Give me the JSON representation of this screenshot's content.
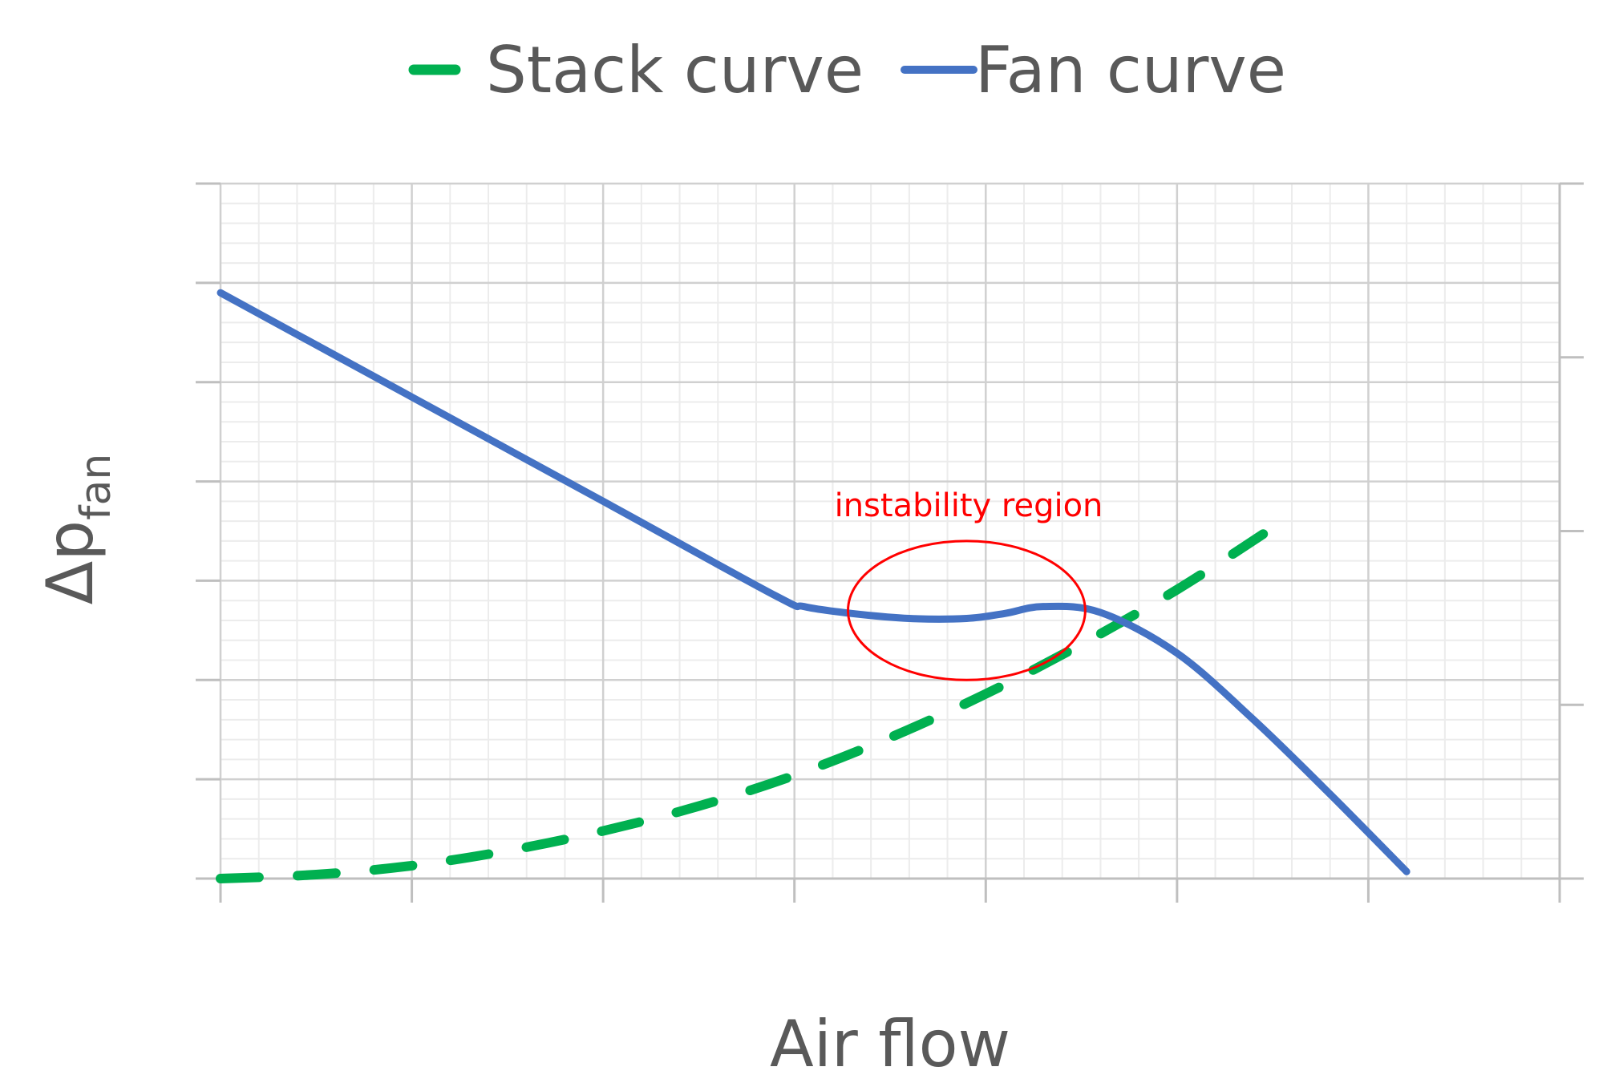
{
  "chart_data": {
    "type": "line",
    "title": "",
    "xlabel": "Air flow",
    "ylabel": "Δp",
    "ylabel_subscript": "fan",
    "xlim": [
      0,
      7
    ],
    "ylim": [
      0,
      7
    ],
    "y2lim": [
      0,
      4
    ],
    "grid": true,
    "minor_grid": true,
    "legend_position": "top",
    "series": [
      {
        "name": "Stack curve",
        "style": "dashed",
        "color": "#00b050",
        "x": [
          0,
          0.5,
          1,
          1.5,
          2,
          2.5,
          3,
          3.5,
          4,
          4.5,
          5,
          5.45
        ],
        "y": [
          0.0,
          0.04,
          0.13,
          0.28,
          0.48,
          0.73,
          1.04,
          1.42,
          1.86,
          2.36,
          2.91,
          3.47
        ]
      },
      {
        "name": "Fan curve",
        "style": "solid",
        "color": "#4472c4",
        "x": [
          0,
          1,
          2,
          2.9,
          3.05,
          3.3,
          3.6,
          3.9,
          4.1,
          4.3,
          4.6,
          5.0,
          5.4,
          5.8,
          6.2
        ],
        "y": [
          5.9,
          4.85,
          3.8,
          2.85,
          2.74,
          2.67,
          2.62,
          2.62,
          2.67,
          2.74,
          2.68,
          2.27,
          1.6,
          0.85,
          0.07
        ]
      }
    ],
    "annotations": [
      {
        "text": "instability region",
        "shape": "ellipse",
        "color": "#ff0000",
        "cx": 3.9,
        "cy": 2.7,
        "rx": 0.62,
        "ry": 0.7
      }
    ]
  }
}
